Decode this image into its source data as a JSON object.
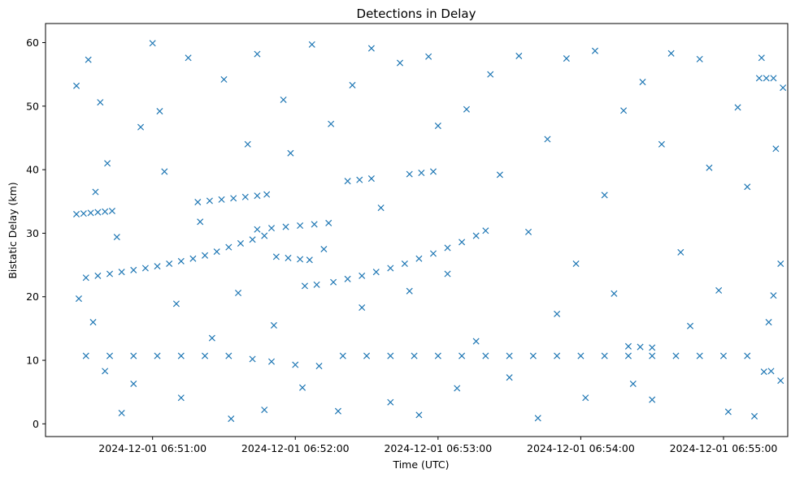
{
  "chart_data": {
    "type": "scatter",
    "title": "Detections in Delay",
    "xlabel": "Time (UTC)",
    "ylabel": "Bistatic Delay (km)",
    "x_tick_labels": [
      "2024-12-01 06:51:00",
      "2024-12-01 06:52:00",
      "2024-12-01 06:53:00",
      "2024-12-01 06:54:00",
      "2024-12-01 06:55:00"
    ],
    "x_ticks": [
      "2024-12-01T06:51:00Z",
      "2024-12-01T06:52:00Z",
      "2024-12-01T06:53:00Z",
      "2024-12-01T06:54:00Z",
      "2024-12-01T06:55:00Z"
    ],
    "y_ticks": [
      0,
      10,
      20,
      30,
      40,
      50,
      60
    ],
    "xlim": [
      "2024-12-01T06:50:15Z",
      "2024-12-01T06:55:27Z"
    ],
    "ylim": [
      -2,
      63
    ],
    "grid": false,
    "legend": "none",
    "marker": "x",
    "color": "#1f77b4",
    "series": [
      {
        "points": [
          {
            "t": "2024-12-01T06:50:28Z",
            "y": 33.0
          },
          {
            "t": "2024-12-01T06:50:31Z",
            "y": 33.1
          },
          {
            "t": "2024-12-01T06:50:34Z",
            "y": 33.2
          },
          {
            "t": "2024-12-01T06:50:37Z",
            "y": 33.3
          },
          {
            "t": "2024-12-01T06:50:40Z",
            "y": 33.4
          },
          {
            "t": "2024-12-01T06:50:43Z",
            "y": 33.5
          },
          {
            "t": "2024-12-01T06:50:32Z",
            "y": 23.0
          },
          {
            "t": "2024-12-01T06:50:37Z",
            "y": 23.3
          },
          {
            "t": "2024-12-01T06:50:42Z",
            "y": 23.6
          },
          {
            "t": "2024-12-01T06:50:47Z",
            "y": 23.9
          },
          {
            "t": "2024-12-01T06:50:52Z",
            "y": 24.2
          },
          {
            "t": "2024-12-01T06:50:57Z",
            "y": 24.5
          },
          {
            "t": "2024-12-01T06:51:02Z",
            "y": 24.8
          },
          {
            "t": "2024-12-01T06:51:07Z",
            "y": 25.2
          },
          {
            "t": "2024-12-01T06:51:12Z",
            "y": 25.6
          },
          {
            "t": "2024-12-01T06:51:17Z",
            "y": 26.0
          },
          {
            "t": "2024-12-01T06:51:22Z",
            "y": 26.5
          },
          {
            "t": "2024-12-01T06:51:27Z",
            "y": 27.1
          },
          {
            "t": "2024-12-01T06:51:32Z",
            "y": 27.8
          },
          {
            "t": "2024-12-01T06:51:37Z",
            "y": 28.4
          },
          {
            "t": "2024-12-01T06:51:42Z",
            "y": 29.0
          },
          {
            "t": "2024-12-01T06:51:47Z",
            "y": 29.6
          },
          {
            "t": "2024-12-01T06:51:19Z",
            "y": 34.9
          },
          {
            "t": "2024-12-01T06:51:24Z",
            "y": 35.1
          },
          {
            "t": "2024-12-01T06:51:29Z",
            "y": 35.3
          },
          {
            "t": "2024-12-01T06:51:34Z",
            "y": 35.5
          },
          {
            "t": "2024-12-01T06:51:39Z",
            "y": 35.7
          },
          {
            "t": "2024-12-01T06:51:44Z",
            "y": 35.9
          },
          {
            "t": "2024-12-01T06:51:48Z",
            "y": 36.1
          },
          {
            "t": "2024-12-01T06:51:44Z",
            "y": 30.6
          },
          {
            "t": "2024-12-01T06:51:50Z",
            "y": 30.8
          },
          {
            "t": "2024-12-01T06:51:56Z",
            "y": 31.0
          },
          {
            "t": "2024-12-01T06:52:02Z",
            "y": 31.2
          },
          {
            "t": "2024-12-01T06:52:08Z",
            "y": 31.4
          },
          {
            "t": "2024-12-01T06:52:14Z",
            "y": 31.6
          },
          {
            "t": "2024-12-01T06:51:52Z",
            "y": 26.3
          },
          {
            "t": "2024-12-01T06:51:57Z",
            "y": 26.1
          },
          {
            "t": "2024-12-01T06:52:02Z",
            "y": 25.9
          },
          {
            "t": "2024-12-01T06:52:06Z",
            "y": 25.8
          },
          {
            "t": "2024-12-01T06:52:04Z",
            "y": 21.7
          },
          {
            "t": "2024-12-01T06:52:09Z",
            "y": 21.9
          },
          {
            "t": "2024-12-01T06:52:16Z",
            "y": 22.3
          },
          {
            "t": "2024-12-01T06:52:22Z",
            "y": 22.8
          },
          {
            "t": "2024-12-01T06:52:28Z",
            "y": 23.3
          },
          {
            "t": "2024-12-01T06:52:34Z",
            "y": 23.9
          },
          {
            "t": "2024-12-01T06:52:40Z",
            "y": 24.5
          },
          {
            "t": "2024-12-01T06:52:46Z",
            "y": 25.2
          },
          {
            "t": "2024-12-01T06:52:52Z",
            "y": 26.0
          },
          {
            "t": "2024-12-01T06:52:58Z",
            "y": 26.8
          },
          {
            "t": "2024-12-01T06:53:04Z",
            "y": 27.7
          },
          {
            "t": "2024-12-01T06:53:10Z",
            "y": 28.6
          },
          {
            "t": "2024-12-01T06:53:16Z",
            "y": 29.6
          },
          {
            "t": "2024-12-01T06:53:20Z",
            "y": 30.4
          },
          {
            "t": "2024-12-01T06:52:22Z",
            "y": 38.2
          },
          {
            "t": "2024-12-01T06:52:27Z",
            "y": 38.4
          },
          {
            "t": "2024-12-01T06:52:32Z",
            "y": 38.6
          },
          {
            "t": "2024-12-01T06:52:48Z",
            "y": 39.3
          },
          {
            "t": "2024-12-01T06:52:53Z",
            "y": 39.5
          },
          {
            "t": "2024-12-01T06:52:58Z",
            "y": 39.7
          },
          {
            "t": "2024-12-01T06:50:32Z",
            "y": 10.7
          },
          {
            "t": "2024-12-01T06:50:42Z",
            "y": 10.7
          },
          {
            "t": "2024-12-01T06:50:52Z",
            "y": 10.7
          },
          {
            "t": "2024-12-01T06:51:02Z",
            "y": 10.7
          },
          {
            "t": "2024-12-01T06:51:12Z",
            "y": 10.7
          },
          {
            "t": "2024-12-01T06:51:22Z",
            "y": 10.7
          },
          {
            "t": "2024-12-01T06:51:32Z",
            "y": 10.7
          },
          {
            "t": "2024-12-01T06:51:42Z",
            "y": 10.2
          },
          {
            "t": "2024-12-01T06:51:50Z",
            "y": 9.8
          },
          {
            "t": "2024-12-01T06:52:00Z",
            "y": 9.3
          },
          {
            "t": "2024-12-01T06:52:10Z",
            "y": 9.1
          },
          {
            "t": "2024-12-01T06:52:20Z",
            "y": 10.7
          },
          {
            "t": "2024-12-01T06:52:30Z",
            "y": 10.7
          },
          {
            "t": "2024-12-01T06:52:40Z",
            "y": 10.7
          },
          {
            "t": "2024-12-01T06:52:50Z",
            "y": 10.7
          },
          {
            "t": "2024-12-01T06:53:00Z",
            "y": 10.7
          },
          {
            "t": "2024-12-01T06:53:10Z",
            "y": 10.7
          },
          {
            "t": "2024-12-01T06:53:20Z",
            "y": 10.7
          },
          {
            "t": "2024-12-01T06:53:30Z",
            "y": 10.7
          },
          {
            "t": "2024-12-01T06:53:40Z",
            "y": 10.7
          },
          {
            "t": "2024-12-01T06:53:50Z",
            "y": 10.7
          },
          {
            "t": "2024-12-01T06:54:00Z",
            "y": 10.7
          },
          {
            "t": "2024-12-01T06:54:10Z",
            "y": 10.7
          },
          {
            "t": "2024-12-01T06:54:20Z",
            "y": 10.7
          },
          {
            "t": "2024-12-01T06:54:30Z",
            "y": 10.7
          },
          {
            "t": "2024-12-01T06:54:40Z",
            "y": 10.7
          },
          {
            "t": "2024-12-01T06:54:50Z",
            "y": 10.7
          },
          {
            "t": "2024-12-01T06:55:00Z",
            "y": 10.7
          },
          {
            "t": "2024-12-01T06:55:10Z",
            "y": 10.7
          },
          {
            "t": "2024-12-01T06:54:20Z",
            "y": 12.2
          },
          {
            "t": "2024-12-01T06:54:25Z",
            "y": 12.1
          },
          {
            "t": "2024-12-01T06:54:30Z",
            "y": 12.0
          },
          {
            "t": "2024-12-01T06:55:15Z",
            "y": 54.4
          },
          {
            "t": "2024-12-01T06:55:18Z",
            "y": 54.4
          },
          {
            "t": "2024-12-01T06:55:21Z",
            "y": 54.4
          },
          {
            "t": "2024-12-01T06:55:17Z",
            "y": 8.2
          },
          {
            "t": "2024-12-01T06:55:20Z",
            "y": 8.3
          },
          {
            "t": "2024-12-01T06:50:28Z",
            "y": 53.2
          },
          {
            "t": "2024-12-01T06:50:33Z",
            "y": 57.3
          },
          {
            "t": "2024-12-01T06:50:38Z",
            "y": 50.6
          },
          {
            "t": "2024-12-01T06:50:41Z",
            "y": 41.0
          },
          {
            "t": "2024-12-01T06:50:36Z",
            "y": 36.5
          },
          {
            "t": "2024-12-01T06:50:45Z",
            "y": 29.4
          },
          {
            "t": "2024-12-01T06:50:29Z",
            "y": 19.7
          },
          {
            "t": "2024-12-01T06:50:35Z",
            "y": 16.0
          },
          {
            "t": "2024-12-01T06:50:40Z",
            "y": 8.3
          },
          {
            "t": "2024-12-01T06:50:47Z",
            "y": 1.7
          },
          {
            "t": "2024-12-01T06:50:52Z",
            "y": 6.3
          },
          {
            "t": "2024-12-01T06:50:55Z",
            "y": 46.7
          },
          {
            "t": "2024-12-01T06:51:00Z",
            "y": 59.9
          },
          {
            "t": "2024-12-01T06:51:03Z",
            "y": 49.2
          },
          {
            "t": "2024-12-01T06:51:05Z",
            "y": 39.7
          },
          {
            "t": "2024-12-01T06:51:10Z",
            "y": 18.9
          },
          {
            "t": "2024-12-01T06:51:12Z",
            "y": 4.1
          },
          {
            "t": "2024-12-01T06:51:15Z",
            "y": 57.6
          },
          {
            "t": "2024-12-01T06:51:20Z",
            "y": 31.8
          },
          {
            "t": "2024-12-01T06:51:25Z",
            "y": 13.5
          },
          {
            "t": "2024-12-01T06:51:30Z",
            "y": 54.2
          },
          {
            "t": "2024-12-01T06:51:33Z",
            "y": 0.8
          },
          {
            "t": "2024-12-01T06:51:36Z",
            "y": 20.6
          },
          {
            "t": "2024-12-01T06:51:40Z",
            "y": 44.0
          },
          {
            "t": "2024-12-01T06:51:44Z",
            "y": 58.2
          },
          {
            "t": "2024-12-01T06:51:47Z",
            "y": 2.2
          },
          {
            "t": "2024-12-01T06:51:51Z",
            "y": 15.5
          },
          {
            "t": "2024-12-01T06:51:55Z",
            "y": 51.0
          },
          {
            "t": "2024-12-01T06:51:58Z",
            "y": 42.6
          },
          {
            "t": "2024-12-01T06:52:03Z",
            "y": 5.7
          },
          {
            "t": "2024-12-01T06:52:07Z",
            "y": 59.7
          },
          {
            "t": "2024-12-01T06:52:12Z",
            "y": 27.5
          },
          {
            "t": "2024-12-01T06:52:15Z",
            "y": 47.2
          },
          {
            "t": "2024-12-01T06:52:18Z",
            "y": 2.0
          },
          {
            "t": "2024-12-01T06:52:24Z",
            "y": 53.3
          },
          {
            "t": "2024-12-01T06:52:28Z",
            "y": 18.3
          },
          {
            "t": "2024-12-01T06:52:32Z",
            "y": 59.1
          },
          {
            "t": "2024-12-01T06:52:36Z",
            "y": 34.0
          },
          {
            "t": "2024-12-01T06:52:40Z",
            "y": 3.4
          },
          {
            "t": "2024-12-01T06:52:44Z",
            "y": 56.8
          },
          {
            "t": "2024-12-01T06:52:48Z",
            "y": 20.9
          },
          {
            "t": "2024-12-01T06:52:52Z",
            "y": 1.4
          },
          {
            "t": "2024-12-01T06:52:56Z",
            "y": 57.8
          },
          {
            "t": "2024-12-01T06:53:00Z",
            "y": 46.9
          },
          {
            "t": "2024-12-01T06:53:04Z",
            "y": 23.6
          },
          {
            "t": "2024-12-01T06:53:08Z",
            "y": 5.6
          },
          {
            "t": "2024-12-01T06:53:12Z",
            "y": 49.5
          },
          {
            "t": "2024-12-01T06:53:16Z",
            "y": 13.0
          },
          {
            "t": "2024-12-01T06:53:22Z",
            "y": 55.0
          },
          {
            "t": "2024-12-01T06:53:26Z",
            "y": 39.2
          },
          {
            "t": "2024-12-01T06:53:30Z",
            "y": 7.3
          },
          {
            "t": "2024-12-01T06:53:34Z",
            "y": 57.9
          },
          {
            "t": "2024-12-01T06:53:38Z",
            "y": 30.2
          },
          {
            "t": "2024-12-01T06:53:42Z",
            "y": 0.9
          },
          {
            "t": "2024-12-01T06:53:46Z",
            "y": 44.8
          },
          {
            "t": "2024-12-01T06:53:50Z",
            "y": 17.3
          },
          {
            "t": "2024-12-01T06:53:54Z",
            "y": 57.5
          },
          {
            "t": "2024-12-01T06:53:58Z",
            "y": 25.2
          },
          {
            "t": "2024-12-01T06:54:02Z",
            "y": 4.1
          },
          {
            "t": "2024-12-01T06:54:06Z",
            "y": 58.7
          },
          {
            "t": "2024-12-01T06:54:10Z",
            "y": 36.0
          },
          {
            "t": "2024-12-01T06:54:14Z",
            "y": 20.5
          },
          {
            "t": "2024-12-01T06:54:18Z",
            "y": 49.3
          },
          {
            "t": "2024-12-01T06:54:22Z",
            "y": 6.3
          },
          {
            "t": "2024-12-01T06:54:26Z",
            "y": 53.8
          },
          {
            "t": "2024-12-01T06:54:30Z",
            "y": 3.8
          },
          {
            "t": "2024-12-01T06:54:34Z",
            "y": 44.0
          },
          {
            "t": "2024-12-01T06:54:38Z",
            "y": 58.3
          },
          {
            "t": "2024-12-01T06:54:42Z",
            "y": 27.0
          },
          {
            "t": "2024-12-01T06:54:46Z",
            "y": 15.4
          },
          {
            "t": "2024-12-01T06:54:50Z",
            "y": 57.4
          },
          {
            "t": "2024-12-01T06:54:54Z",
            "y": 40.3
          },
          {
            "t": "2024-12-01T06:54:58Z",
            "y": 21.0
          },
          {
            "t": "2024-12-01T06:55:02Z",
            "y": 1.9
          },
          {
            "t": "2024-12-01T06:55:06Z",
            "y": 49.8
          },
          {
            "t": "2024-12-01T06:55:10Z",
            "y": 37.3
          },
          {
            "t": "2024-12-01T06:55:13Z",
            "y": 1.2
          },
          {
            "t": "2024-12-01T06:55:16Z",
            "y": 57.6
          },
          {
            "t": "2024-12-01T06:55:19Z",
            "y": 16.0
          },
          {
            "t": "2024-12-01T06:55:22Z",
            "y": 43.3
          },
          {
            "t": "2024-12-01T06:55:24Z",
            "y": 25.2
          },
          {
            "t": "2024-12-01T06:55:25Z",
            "y": 52.9
          },
          {
            "t": "2024-12-01T06:55:24Z",
            "y": 6.8
          },
          {
            "t": "2024-12-01T06:55:21Z",
            "y": 20.2
          }
        ]
      }
    ]
  }
}
